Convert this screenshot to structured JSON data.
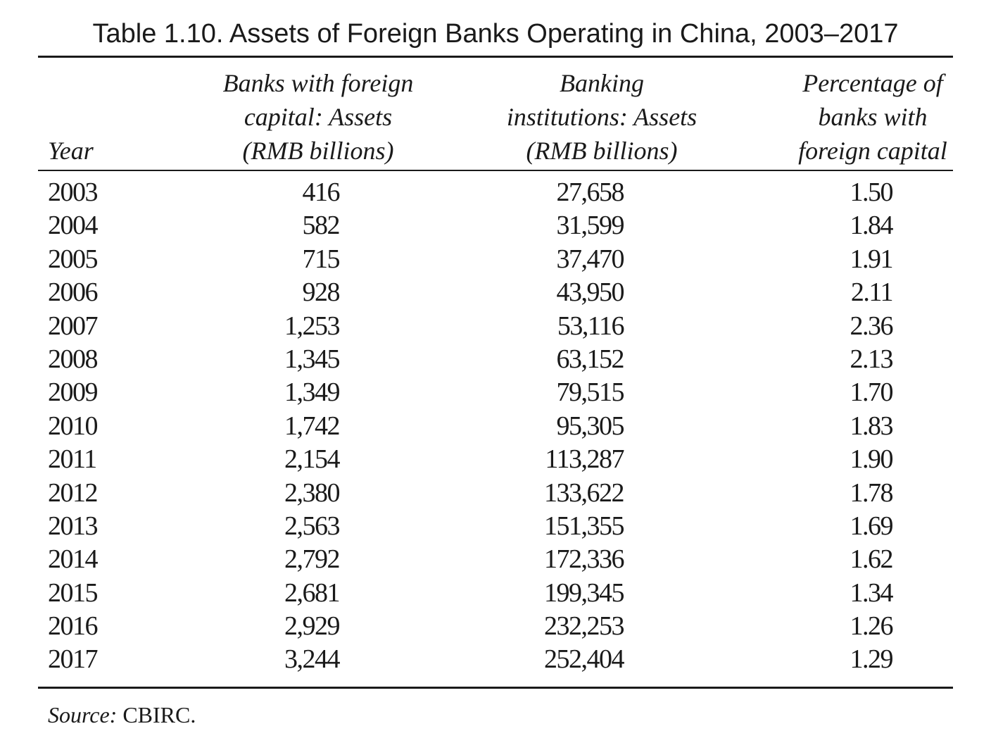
{
  "title": "Table 1.10. Assets of Foreign Banks Operating in China, 2003–2017",
  "header": {
    "year": "Year",
    "col1": [
      "Banks with foreign",
      "capital: Assets",
      "(RMB billions)"
    ],
    "col2": [
      "Banking",
      "institutions: Assets",
      "(RMB billions)"
    ],
    "col3": [
      "Percentage of",
      "banks with",
      "foreign capital"
    ]
  },
  "rows": [
    {
      "year": "2003",
      "foreign": "416",
      "institutions": "27,658",
      "pct": "1.50"
    },
    {
      "year": "2004",
      "foreign": "582",
      "institutions": "31,599",
      "pct": "1.84"
    },
    {
      "year": "2005",
      "foreign": "715",
      "institutions": "37,470",
      "pct": "1.91"
    },
    {
      "year": "2006",
      "foreign": "928",
      "institutions": "43,950",
      "pct": "2.11"
    },
    {
      "year": "2007",
      "foreign": "1,253",
      "institutions": "53,116",
      "pct": "2.36"
    },
    {
      "year": "2008",
      "foreign": "1,345",
      "institutions": "63,152",
      "pct": "2.13"
    },
    {
      "year": "2009",
      "foreign": "1,349",
      "institutions": "79,515",
      "pct": "1.70"
    },
    {
      "year": "2010",
      "foreign": "1,742",
      "institutions": "95,305",
      "pct": "1.83"
    },
    {
      "year": "2011",
      "foreign": "2,154",
      "institutions": "113,287",
      "pct": "1.90"
    },
    {
      "year": "2012",
      "foreign": "2,380",
      "institutions": "133,622",
      "pct": "1.78"
    },
    {
      "year": "2013",
      "foreign": "2,563",
      "institutions": "151,355",
      "pct": "1.69"
    },
    {
      "year": "2014",
      "foreign": "2,792",
      "institutions": "172,336",
      "pct": "1.62"
    },
    {
      "year": "2015",
      "foreign": "2,681",
      "institutions": "199,345",
      "pct": "1.34"
    },
    {
      "year": "2016",
      "foreign": "2,929",
      "institutions": "232,253",
      "pct": "1.26"
    },
    {
      "year": "2017",
      "foreign": "3,244",
      "institutions": "252,404",
      "pct": "1.29"
    }
  ],
  "source": {
    "label": "Source:",
    "text": " CBIRC."
  }
}
